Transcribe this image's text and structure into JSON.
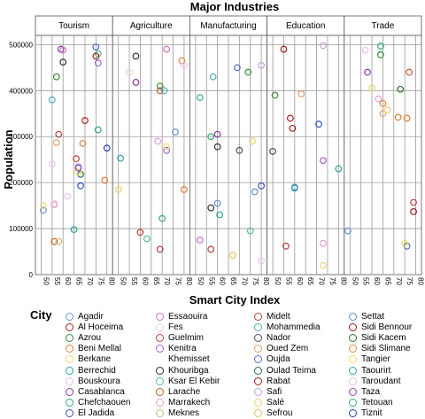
{
  "chart_data": {
    "type": "scatter",
    "title": "Major Industries",
    "xlabel": "Smart City Index",
    "ylabel": "Population",
    "facets": [
      "Tourism",
      "Agriculture",
      "Manufacturing",
      "Education",
      "Trade"
    ],
    "xlim": [
      49,
      81
    ],
    "ylim": [
      0,
      520000
    ],
    "xticks": [
      "50",
      "55",
      "60",
      "65",
      "70",
      "75",
      "80"
    ],
    "yticks": [
      "0",
      "100000",
      "200000",
      "300000",
      "400000",
      "500000"
    ],
    "grid": true,
    "legend_title": "City",
    "legend_placement": "bottom",
    "cities": [
      {
        "name": "Agadir",
        "color": "#6a8fd8"
      },
      {
        "name": "Al Hoceima",
        "color": "#b32020"
      },
      {
        "name": "Azrou",
        "color": "#3a8a3a"
      },
      {
        "name": "Beni Mellal",
        "color": "#e07a3a"
      },
      {
        "name": "Berkane",
        "color": "#e8d870"
      },
      {
        "name": "Berrechid",
        "color": "#2aa0a0"
      },
      {
        "name": "Bouskoura",
        "color": "#e8c0e8"
      },
      {
        "name": "Casablanca",
        "color": "#8a3aa0"
      },
      {
        "name": "Chefchaouen",
        "color": "#30a870"
      },
      {
        "name": "El Jadida",
        "color": "#3050c0"
      },
      {
        "name": "Essaouira",
        "color": "#d070c0"
      },
      {
        "name": "Fes",
        "color": "#f0d0d0"
      },
      {
        "name": "Guelmim",
        "color": "#c04040"
      },
      {
        "name": "Kenitra",
        "color": "#a060d0"
      },
      {
        "name": "Khemisset",
        "color": "#ffffff"
      },
      {
        "name": "Khouribga",
        "color": "#303030"
      },
      {
        "name": "Ksar El Kebir",
        "color": "#50b8a0"
      },
      {
        "name": "Larache",
        "color": "#c05a30"
      },
      {
        "name": "Marrakech",
        "color": "#e0a0d0"
      },
      {
        "name": "Meknes",
        "color": "#d0b870"
      },
      {
        "name": "Midelt",
        "color": "#b04040"
      },
      {
        "name": "Mohammedia",
        "color": "#50b0c0"
      },
      {
        "name": "Nador",
        "color": "#505050"
      },
      {
        "name": "Oued Zem",
        "color": "#e0a070"
      },
      {
        "name": "Oujda",
        "color": "#5070c0"
      },
      {
        "name": "Oulad Teima",
        "color": "#2a6a6a"
      },
      {
        "name": "Rabat",
        "color": "#a02020"
      },
      {
        "name": "Safi",
        "color": "#c0a0e0"
      },
      {
        "name": "Salé",
        "color": "#f0d070"
      },
      {
        "name": "Sefrou",
        "color": "#e8c060"
      },
      {
        "name": "Settat",
        "color": "#6090c8"
      },
      {
        "name": "Sidi Bennour",
        "color": "#a01818"
      },
      {
        "name": "Sidi Kacem",
        "color": "#287828"
      },
      {
        "name": "Sidi Slimane",
        "color": "#e08848"
      },
      {
        "name": "Tangier",
        "color": "#f0e060"
      },
      {
        "name": "Taourirt",
        "color": "#2aa8a0"
      },
      {
        "name": "Taroudant",
        "color": "#f0c0f0"
      },
      {
        "name": "Taza",
        "color": "#9040b0"
      },
      {
        "name": "Tetouan",
        "color": "#30b070"
      },
      {
        "name": "Tiznit",
        "color": "#2840b0"
      }
    ],
    "series": [
      {
        "facet": "Tourism",
        "points": [
          {
            "city": "Agadir",
            "x": 51,
            "y": 140000
          },
          {
            "city": "Al Hoceima",
            "x": 70,
            "y": 335000
          },
          {
            "city": "Azrou",
            "x": 57,
            "y": 430000
          },
          {
            "city": "Beni Mellal",
            "x": 79,
            "y": 205000
          },
          {
            "city": "Berkane",
            "x": 51,
            "y": 150000
          },
          {
            "city": "Berrechid",
            "x": 65,
            "y": 98000
          },
          {
            "city": "Bouskoura",
            "x": 55,
            "y": 240000
          },
          {
            "city": "Casablanca",
            "x": 59,
            "y": 490000
          },
          {
            "city": "Chefchaouen",
            "x": 76,
            "y": 315000
          },
          {
            "city": "El Jadida",
            "x": 68,
            "y": 193000
          },
          {
            "city": "Essaouira",
            "x": 60,
            "y": 488000
          },
          {
            "city": "Fes",
            "x": 56,
            "y": 155000
          },
          {
            "city": "Guelmim",
            "x": 66,
            "y": 252000
          },
          {
            "city": "Kenitra",
            "x": 76,
            "y": 460000
          },
          {
            "city": "Khouribga",
            "x": 60,
            "y": 462000
          },
          {
            "city": "Ksar El Kebir",
            "x": 76,
            "y": 480000
          },
          {
            "city": "Larache",
            "x": 56,
            "y": 72000
          },
          {
            "city": "Marrakech",
            "x": 56,
            "y": 152000
          },
          {
            "city": "Meknes",
            "x": 58,
            "y": 72000
          },
          {
            "city": "Midelt",
            "x": 58,
            "y": 305000
          },
          {
            "city": "Mohammedia",
            "x": 55,
            "y": 380000
          },
          {
            "city": "Oued Zem",
            "x": 57,
            "y": 287000
          },
          {
            "city": "Oujda",
            "x": 75,
            "y": 495000
          },
          {
            "city": "Oulad Teima",
            "x": 68,
            "y": 218000
          },
          {
            "city": "Rabat",
            "x": 75,
            "y": 475000
          },
          {
            "city": "Safi",
            "x": 67,
            "y": 235000
          },
          {
            "city": "Sidi Slimane",
            "x": 69,
            "y": 285000
          },
          {
            "city": "Tangier",
            "x": 67,
            "y": 223000
          },
          {
            "city": "Taroudant",
            "x": 62,
            "y": 170000
          },
          {
            "city": "Taza",
            "x": 67,
            "y": 232000
          },
          {
            "city": "Tiznit",
            "x": 80,
            "y": 275000
          }
        ]
      },
      {
        "facet": "Agriculture",
        "points": [
          {
            "city": "Agadir",
            "x": 76,
            "y": 310000
          },
          {
            "city": "Azrou",
            "x": 69,
            "y": 410000
          },
          {
            "city": "Beni Mellal",
            "x": 80,
            "y": 185000
          },
          {
            "city": "Berkane",
            "x": 50,
            "y": 185000
          },
          {
            "city": "Berrechid",
            "x": 51,
            "y": 253000
          },
          {
            "city": "Casablanca",
            "x": 58,
            "y": 418000
          },
          {
            "city": "Chefchaouen",
            "x": 70,
            "y": 122000
          },
          {
            "city": "Essaouira",
            "x": 72,
            "y": 490000
          },
          {
            "city": "Fes",
            "x": 55,
            "y": 440000
          },
          {
            "city": "Guelmim",
            "x": 60,
            "y": 92000
          },
          {
            "city": "Kenitra",
            "x": 72,
            "y": 270000
          },
          {
            "city": "Khouribga",
            "x": 58,
            "y": 475000
          },
          {
            "city": "Ksar El Kebir",
            "x": 63,
            "y": 78000
          },
          {
            "city": "Larache",
            "x": 69,
            "y": 400000
          },
          {
            "city": "Marrakech",
            "x": 68,
            "y": 290000
          },
          {
            "city": "Midelt",
            "x": 69,
            "y": 55000
          },
          {
            "city": "Mohammedia",
            "x": 71,
            "y": 400000
          },
          {
            "city": "Sidi Slimane",
            "x": 79,
            "y": 465000
          },
          {
            "city": "Tangier",
            "x": 72,
            "y": 278000
          },
          {
            "city": "Taroudant",
            "x": 80,
            "y": 455000
          }
        ]
      },
      {
        "facet": "Manufacturing",
        "points": [
          {
            "city": "Agadir",
            "x": 60,
            "y": 155000
          },
          {
            "city": "Azrou",
            "x": 74,
            "y": 440000
          },
          {
            "city": "Berkane",
            "x": 76,
            "y": 290000
          },
          {
            "city": "Berrechid",
            "x": 61,
            "y": 130000
          },
          {
            "city": "Casablanca",
            "x": 60,
            "y": 305000
          },
          {
            "city": "Chefchaouen",
            "x": 57,
            "y": 300000
          },
          {
            "city": "El Jadida",
            "x": 80,
            "y": 193000
          },
          {
            "city": "Essaouira",
            "x": 52,
            "y": 75000
          },
          {
            "city": "Khouribga",
            "x": 60,
            "y": 278000
          },
          {
            "city": "Ksar El Kebir",
            "x": 75,
            "y": 95000
          },
          {
            "city": "Midelt",
            "x": 57,
            "y": 55000
          },
          {
            "city": "Mohammedia",
            "x": 58,
            "y": 430000
          },
          {
            "city": "Nador",
            "x": 70,
            "y": 270000
          },
          {
            "city": "Oujda",
            "x": 69,
            "y": 450000
          },
          {
            "city": "Safi",
            "x": 80,
            "y": 455000
          },
          {
            "city": "Sefrou",
            "x": 67,
            "y": 42000
          },
          {
            "city": "Tetouan",
            "x": 52,
            "y": 385000
          },
          {
            "city": "Taroudant",
            "x": 80,
            "y": 30000
          },
          {
            "city": "Khouribga",
            "x": 57,
            "y": 145000
          },
          {
            "city": "Settat",
            "x": 77,
            "y": 180000
          }
        ]
      },
      {
        "facet": "Education",
        "points": [
          {
            "city": "Al Hoceima",
            "x": 58,
            "y": 340000
          },
          {
            "city": "Azrou",
            "x": 51,
            "y": 390000
          },
          {
            "city": "Berrechid",
            "x": 80,
            "y": 230000
          },
          {
            "city": "Midelt",
            "x": 56,
            "y": 62000
          },
          {
            "city": "Nador",
            "x": 50,
            "y": 268000
          },
          {
            "city": "Oued Zem",
            "x": 63,
            "y": 393000
          },
          {
            "city": "Oujda",
            "x": 60,
            "y": 190000
          },
          {
            "city": "Rabat",
            "x": 59,
            "y": 318000
          },
          {
            "city": "Safi",
            "x": 73,
            "y": 498000
          },
          {
            "city": "Salé",
            "x": 73,
            "y": 20000
          },
          {
            "city": "Sidi Bennour",
            "x": 55,
            "y": 490000
          },
          {
            "city": "Kenitra",
            "x": 73,
            "y": 248000
          },
          {
            "city": "El Jadida",
            "x": 71,
            "y": 327000
          },
          {
            "city": "Marrakech",
            "x": 73,
            "y": 68000
          },
          {
            "city": "Taourirt",
            "x": 60,
            "y": 188000
          }
        ]
      },
      {
        "facet": "Trade",
        "points": [
          {
            "city": "Agadir",
            "x": 49,
            "y": 95000
          },
          {
            "city": "Azrou",
            "x": 64,
            "y": 478000
          },
          {
            "city": "Beni Mellal",
            "x": 72,
            "y": 342000
          },
          {
            "city": "Berkane",
            "x": 60,
            "y": 405000
          },
          {
            "city": "Casablanca",
            "x": 58,
            "y": 440000
          },
          {
            "city": "Chefchaouen",
            "x": 64,
            "y": 497000
          },
          {
            "city": "Guelmim",
            "x": 79,
            "y": 157000
          },
          {
            "city": "Larache",
            "x": 77,
            "y": 440000
          },
          {
            "city": "Marrakech",
            "x": 63,
            "y": 382000
          },
          {
            "city": "Oued Zem",
            "x": 65,
            "y": 350000
          },
          {
            "city": "Oujda",
            "x": 76,
            "y": 62000
          },
          {
            "city": "Sidi Bennour",
            "x": 79,
            "y": 137000
          },
          {
            "city": "Sidi Kacem",
            "x": 73,
            "y": 403000
          },
          {
            "city": "Sidi Slimane",
            "x": 65,
            "y": 372000
          },
          {
            "city": "Tangier",
            "x": 75,
            "y": 68000
          },
          {
            "city": "Taroudant",
            "x": 57,
            "y": 488000
          },
          {
            "city": "Salé",
            "x": 67,
            "y": 358000
          },
          {
            "city": "Beni Mellal",
            "x": 76,
            "y": 340000
          }
        ]
      }
    ]
  }
}
